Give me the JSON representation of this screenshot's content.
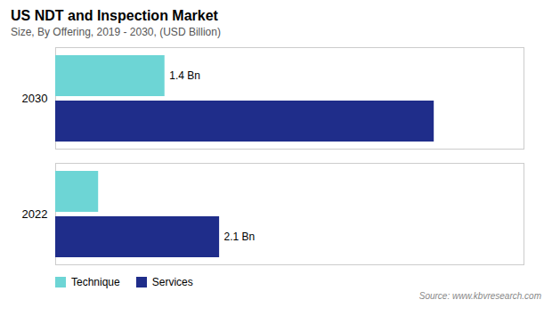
{
  "chart_data": {
    "type": "bar",
    "title": "US NDT and Inspection Market",
    "subtitle": "Size, By Offering, 2019 - 2030, (USD Billion)",
    "source": "Source: www.kbvresearch.com",
    "orientation": "horizontal",
    "categories": [
      "2030",
      "2022"
    ],
    "series": [
      {
        "name": "Technique",
        "color": "#6DD5D5",
        "values": [
          1.4,
          0.55
        ],
        "value_labels": [
          "1.4 Bn",
          null
        ]
      },
      {
        "name": "Services",
        "color": "#1F2D8A",
        "values": [
          4.85,
          2.1
        ],
        "value_labels": [
          null,
          "2.1 Bn"
        ]
      }
    ],
    "xlim": [
      0,
      6.0
    ],
    "tick_labels": "y",
    "legend": "bottom-left",
    "grid": false
  }
}
